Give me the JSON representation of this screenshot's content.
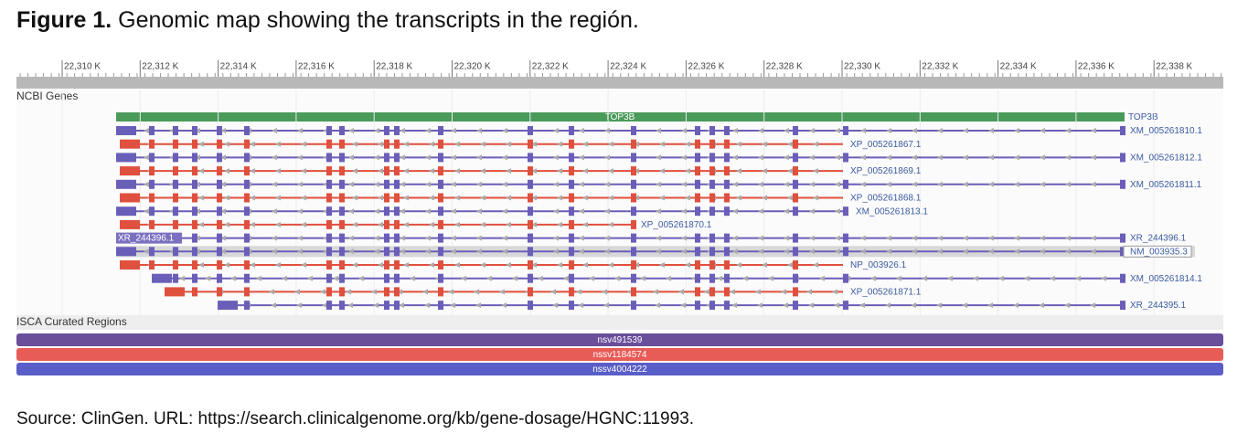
{
  "figure_label": "Figure 1.",
  "caption": "Genomic map showing the transcripts in the región.",
  "ruler": {
    "labels": [
      "22,310 K",
      "22,312 K",
      "22,314 K",
      "22,316 K",
      "22,318 K",
      "22,320 K",
      "22,322 K",
      "22,324 K",
      "22,326 K",
      "22,328 K",
      "22,330 K",
      "22,332 K",
      "22,334 K",
      "22,336 K",
      "22,338 K"
    ]
  },
  "genes_track": {
    "title": "NCBI Genes",
    "gene": "TOP3B",
    "transcripts": [
      {
        "label": "XM_005261810.1"
      },
      {
        "label": "XP_005261867.1"
      },
      {
        "label": "XM_005261812.1"
      },
      {
        "label": "XP_005261869.1"
      },
      {
        "label": "XM_005261811.1"
      },
      {
        "label": "XP_005261868.1"
      },
      {
        "label": "XM_005261813.1"
      },
      {
        "label": "XP_005261870.1"
      },
      {
        "label": "XR_244396.1"
      },
      {
        "label": "NM_003935.3"
      },
      {
        "label": "NP_003926.1"
      },
      {
        "label": "XM_005261814.1"
      },
      {
        "label": "XP_005261871.1"
      },
      {
        "label": "XR_244395.1"
      }
    ]
  },
  "isca_track": {
    "title": "ISCA Curated Regions",
    "regions": [
      "nsv491539",
      "nssv1184574",
      "nssv4004222"
    ]
  },
  "source": "Source: ClinGen. URL: https://search.clinicalgenome.org/kb/gene-dosage/HGNC:11993."
}
